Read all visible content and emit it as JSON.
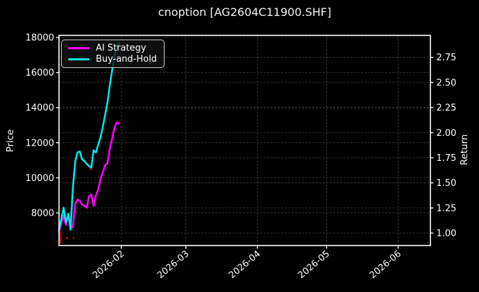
{
  "chart_data": {
    "type": "line",
    "title": "cnoption [AG2604C11900.SHF]",
    "background": "#000000",
    "grid": {
      "visible": true,
      "style": "dashed"
    },
    "x_dates": [
      "2026-01-05",
      "2026-01-06",
      "2026-01-07",
      "2026-01-08",
      "2026-01-09",
      "2026-01-10",
      "2026-01-11",
      "2026-01-12",
      "2026-01-13",
      "2026-01-14",
      "2026-01-15",
      "2026-01-16",
      "2026-01-17",
      "2026-01-18",
      "2026-01-19",
      "2026-01-20",
      "2026-01-21",
      "2026-01-22",
      "2026-01-23",
      "2026-01-24",
      "2026-01-25",
      "2026-01-26",
      "2026-01-27",
      "2026-01-28",
      "2026-01-29",
      "2026-01-30",
      "2026-01-31"
    ],
    "series": [
      {
        "name": "AI Strategy",
        "color": "#ff00ff",
        "axis": "left",
        "values": [
          6920,
          7440,
          7830,
          7310,
          7900,
          7240,
          7180,
          8490,
          8760,
          8690,
          8490,
          8400,
          8300,
          8950,
          9050,
          8400,
          9020,
          9350,
          9930,
          10330,
          10730,
          10830,
          11660,
          12200,
          12850,
          13160,
          13100
        ]
      },
      {
        "name": "Buy-and-Hold",
        "color": "#00e8e8",
        "axis": "left",
        "values": [
          7050,
          7650,
          8300,
          7450,
          7950,
          7050,
          9400,
          10900,
          11450,
          11500,
          11060,
          10950,
          10800,
          10660,
          10580,
          11570,
          11440,
          11900,
          12300,
          12900,
          13600,
          14300,
          15250,
          16100,
          16900,
          17500,
          17690
        ]
      }
    ],
    "left_axis": {
      "label": "Price",
      "ticks": [
        8000,
        10000,
        12000,
        14000,
        16000,
        18000
      ],
      "range": [
        6140,
        18120
      ]
    },
    "right_axis": {
      "label": "Return",
      "ticks": [
        1.0,
        1.25,
        1.5,
        1.75,
        2.0,
        2.25,
        2.5,
        2.75
      ],
      "range": [
        0.876,
        2.969
      ]
    },
    "x_axis": {
      "tick_labels": [
        "2026-02",
        "2026-03",
        "2026-04",
        "2026-05",
        "2026-06"
      ],
      "tick_day_offsets": [
        27,
        55,
        86,
        116,
        147
      ],
      "day_range": [
        0,
        161
      ],
      "start_date": "2026-01-05",
      "label_rotation_deg": -40
    },
    "legend": {
      "location": "upper left"
    },
    "trade_markers": [
      {
        "shape": "bar",
        "day": 0.35,
        "price_from": 6930,
        "price_to": 6240,
        "color": "#e60000"
      },
      {
        "shape": "dot",
        "day": 3.4,
        "price": 6560,
        "color": "#aa0000"
      },
      {
        "shape": "dot",
        "day": 6.3,
        "price": 6560,
        "color": "#7d0000"
      },
      {
        "shape": "dash",
        "day_from": 13.0,
        "day_to": 14.9,
        "price": 10480,
        "color": "#7a0000"
      }
    ],
    "colors": {
      "spine": "#ffffff",
      "tick_label": "#ffffff",
      "grid": "#9a9a9a"
    }
  }
}
